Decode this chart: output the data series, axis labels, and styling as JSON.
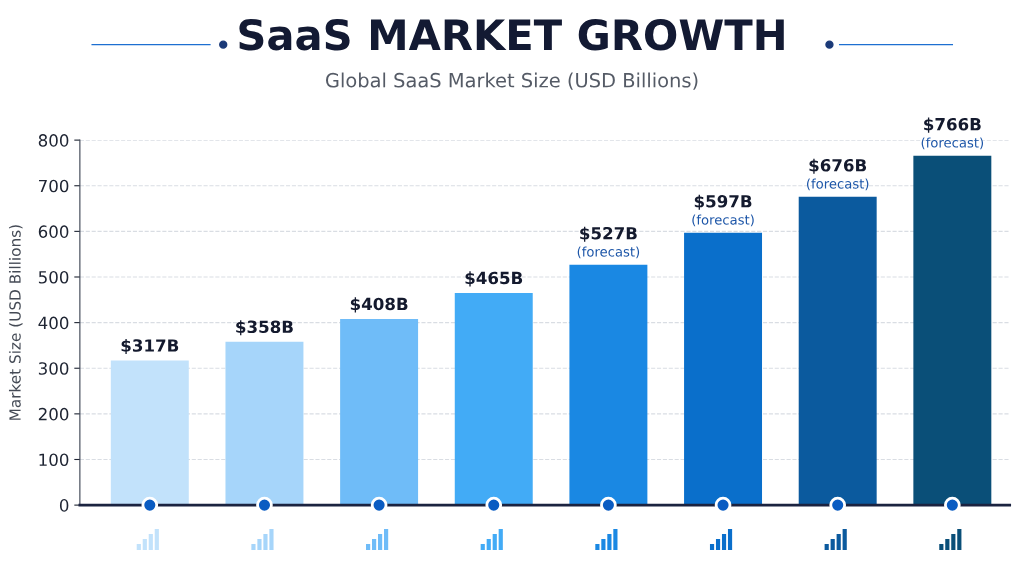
{
  "chart_data": {
    "type": "bar",
    "title": "SaaS MARKET GROWTH",
    "subtitle": "Global SaaS Market Size (USD Billions)",
    "ylabel": "Market Size (USD Billions)",
    "categories": [
      null,
      null,
      null,
      null,
      null,
      null,
      null,
      null
    ],
    "values": [
      317,
      358,
      408,
      465,
      527,
      597,
      676,
      766
    ],
    "colors": [
      "#c2e2fb",
      "#a6d5fa",
      "#6fbcf8",
      "#42abf6",
      "#1a88e3",
      "#0a6fcb",
      "#0b5a9e",
      "#0a4f78"
    ],
    "value_labels": [
      "$317B",
      "$358B",
      "$408B",
      "$465B",
      "$527B\n(forecast)",
      "$597B\n(forecast)",
      "$676B\n(forecast)",
      "$766B\n(forecast)"
    ],
    "ylim": [
      0,
      800
    ],
    "yticks": [
      0,
      100,
      200,
      300,
      400,
      500,
      600,
      700,
      800
    ],
    "grid": "y",
    "tick_labels": "y"
  }
}
